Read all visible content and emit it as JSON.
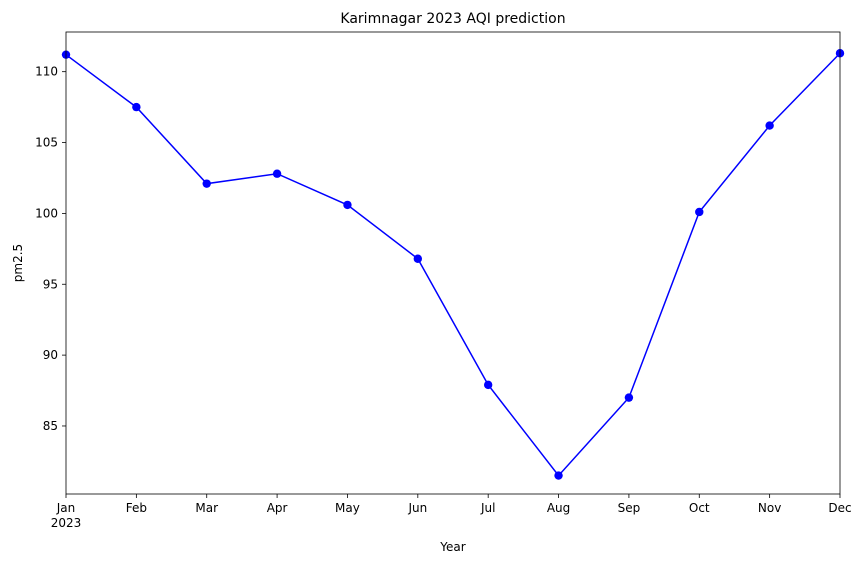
{
  "chart_data": {
    "type": "line",
    "title": "Karimnagar 2023 AQI prediction",
    "xlabel": "Year",
    "ylabel": "pm2.5",
    "categories": [
      "Jan",
      "Feb",
      "Mar",
      "Apr",
      "May",
      "Jun",
      "Jul",
      "Aug",
      "Sep",
      "Oct",
      "Nov",
      "Dec"
    ],
    "year_label": "2023",
    "series": [
      {
        "values": [
          111.2,
          107.5,
          102.1,
          102.8,
          100.6,
          96.8,
          87.9,
          81.5,
          87.0,
          100.1,
          106.2,
          111.3
        ]
      }
    ],
    "ylim": [
      80.2,
      112.8
    ],
    "yticks": [
      85,
      90,
      95,
      100,
      105,
      110
    ],
    "grid": false,
    "marker": "circle",
    "line_color": "#0000ff"
  }
}
